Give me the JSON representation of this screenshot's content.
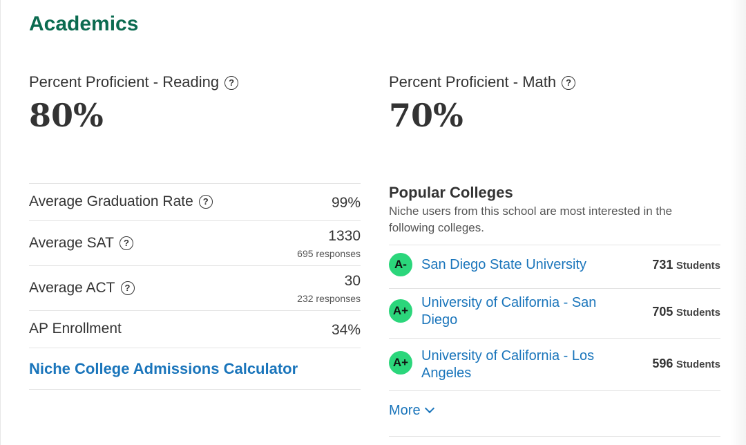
{
  "section": {
    "title": "Academics"
  },
  "stats": [
    {
      "label": "Percent Proficient - Reading",
      "value": "80%"
    },
    {
      "label": "Percent Proficient - Math",
      "value": "70%"
    }
  ],
  "help_icon_glyph": "?",
  "metrics": [
    {
      "label": "Average Graduation Rate",
      "value": "99%",
      "sub": ""
    },
    {
      "label": "Average SAT",
      "value": "1330",
      "sub": "695 responses"
    },
    {
      "label": "Average ACT",
      "value": "30",
      "sub": "232 responses"
    },
    {
      "label": "AP Enrollment",
      "value": "34%",
      "sub": ""
    }
  ],
  "calculator_link": "Niche College Admissions Calculator",
  "popular_colleges": {
    "title": "Popular Colleges",
    "description": "Niche users from this school are most interested in the following colleges.",
    "colleges": [
      {
        "grade": "A-",
        "name": "San Diego State University",
        "count": "731",
        "unit": "Students"
      },
      {
        "grade": "A+",
        "name": "University of California - San Diego",
        "count": "705",
        "unit": "Students"
      },
      {
        "grade": "A+",
        "name": "University of California - Los Angeles",
        "count": "596",
        "unit": "Students"
      }
    ],
    "more_label": "More"
  },
  "colors": {
    "title": "#0b6b50",
    "link": "#1a75bb",
    "grade_badge": "#2bd67b"
  }
}
